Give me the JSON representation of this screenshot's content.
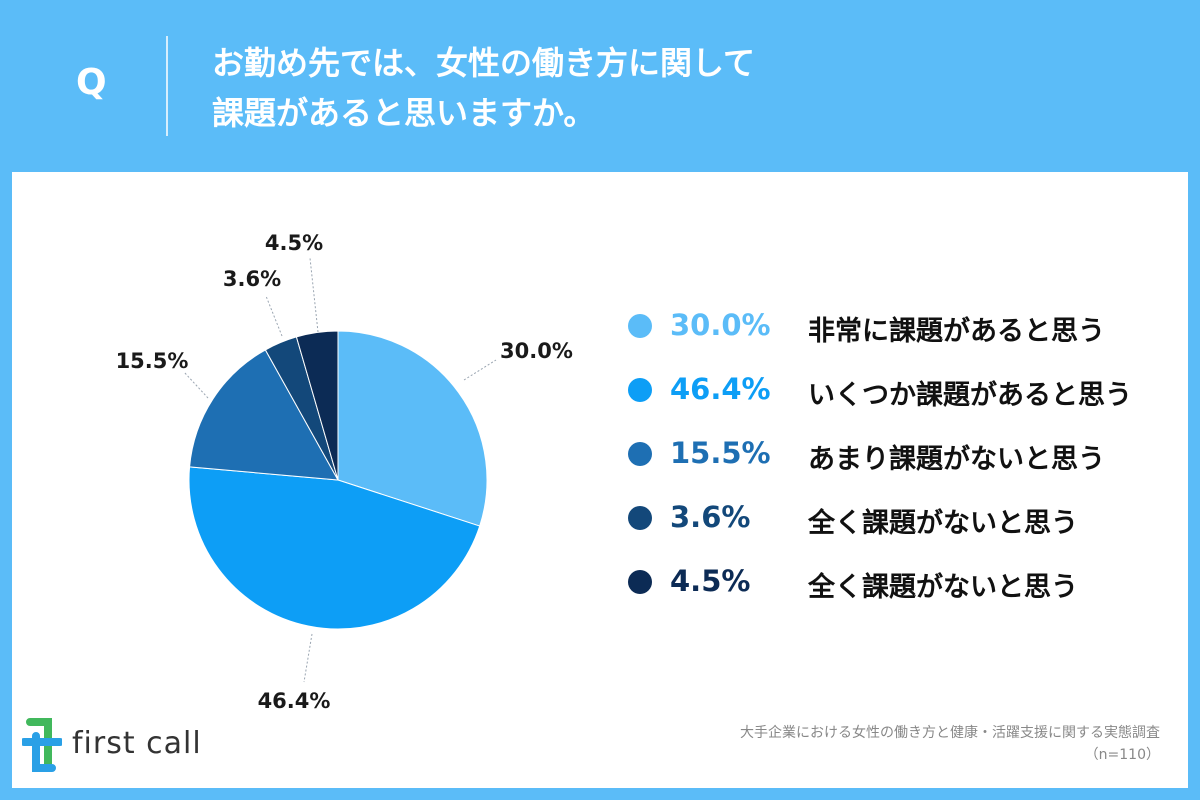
{
  "header": {
    "q_label": "Q",
    "question_line1": "お勤め先では、女性の働き方に関して",
    "question_line2": "課題があると思いますか。"
  },
  "chart_data": {
    "type": "pie",
    "slices": [
      {
        "label": "非常に課題があると思う",
        "value": 30.0,
        "display": "30.0%",
        "color": "#5bbcf8"
      },
      {
        "label": "いくつか課題があると思う",
        "value": 46.4,
        "display": "46.4%",
        "color": "#0d9ef6"
      },
      {
        "label": "あまり課題がないと思う",
        "value": 15.5,
        "display": "15.5%",
        "color": "#1e6fb3"
      },
      {
        "label": "全く課題がないと思う",
        "value": 3.6,
        "display": "3.6%",
        "color": "#13487a"
      },
      {
        "label": "全く課題がないと思う",
        "value": 4.5,
        "display": "4.5%",
        "color": "#0c2b55"
      }
    ],
    "legend_position": "right",
    "start_angle": "top, clockwise"
  },
  "footer": {
    "brand": "first call",
    "source_line1": "大手企業における女性の働き方と健康・活躍支援に関する実態調査",
    "source_line2": "（n=110）"
  },
  "colors": {
    "background": "#5bbcf8",
    "panel": "#ffffff",
    "logo_blue": "#2aa0e6",
    "logo_green": "#41b85c"
  }
}
